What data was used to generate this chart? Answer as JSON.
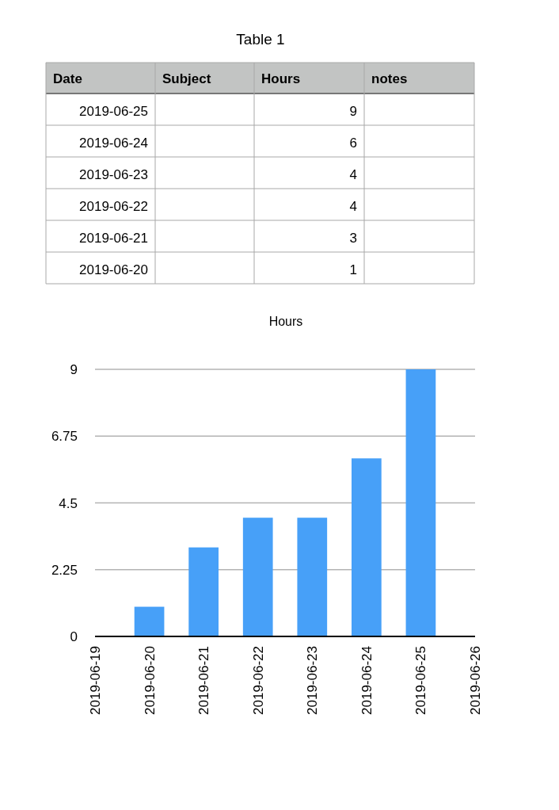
{
  "chart_data": [
    {
      "type": "other",
      "title": "Table 1",
      "annotations": [
        "Date",
        "Subject",
        "Hours",
        "notes"
      ],
      "categories": [
        "2019-06-25",
        "2019-06-24",
        "2019-06-23",
        "2019-06-22",
        "2019-06-21",
        "2019-06-20"
      ],
      "values": [
        9,
        6,
        4,
        4,
        3,
        1
      ],
      "data_labels": true
    },
    {
      "type": "bar",
      "title": "Hours",
      "x": [
        "2019-06-25",
        "2019-06-24",
        "2019-06-23",
        "2019-06-22",
        "2019-06-21",
        "2019-06-20"
      ],
      "values": [
        9,
        6,
        4,
        4,
        3,
        1
      ],
      "color": "#47a0f8",
      "xlim": [
        "2019-06-19",
        "2019-06-26"
      ],
      "xticks": [
        "2019-06-19",
        "2019-06-20",
        "2019-06-21",
        "2019-06-22",
        "2019-06-23",
        "2019-06-24",
        "2019-06-25",
        "2019-06-26"
      ],
      "ylim": [
        0,
        9
      ],
      "yticks": [
        0,
        2.25,
        4.5,
        6.75,
        9
      ],
      "grid": "y"
    }
  ]
}
